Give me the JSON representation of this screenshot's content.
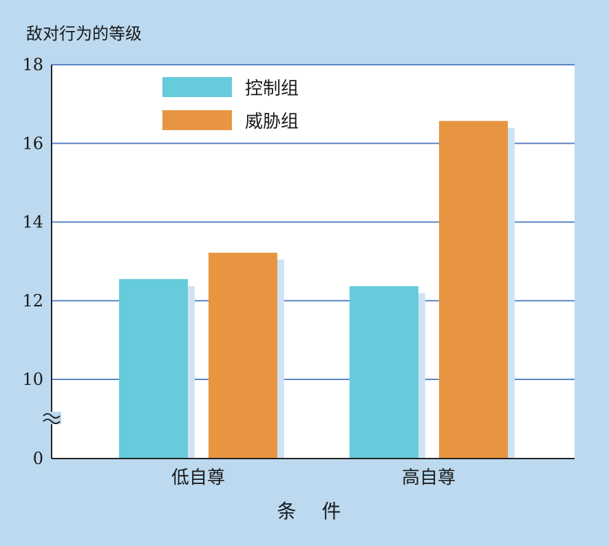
{
  "chart_data": {
    "type": "bar",
    "ylabel": "敌对行为的等级",
    "xlabel": "条 件",
    "categories": [
      "低自尊",
      "高自尊"
    ],
    "series": [
      {
        "name": "控制组",
        "values": [
          12.55,
          12.37
        ],
        "color": "#66cbda"
      },
      {
        "name": "威胁组",
        "values": [
          13.22,
          16.57
        ],
        "color": "#e89541"
      }
    ],
    "yticks": [
      "0",
      "10",
      "12",
      "14",
      "16",
      "18"
    ],
    "ylim": [
      10,
      18
    ],
    "axis_break": true,
    "grid": true,
    "legend": "top-left",
    "colors": {
      "background": "#bcd9ef",
      "plot": "#ffffff",
      "grid": "#5b84c4",
      "shadow": "#cfe3f4"
    }
  }
}
